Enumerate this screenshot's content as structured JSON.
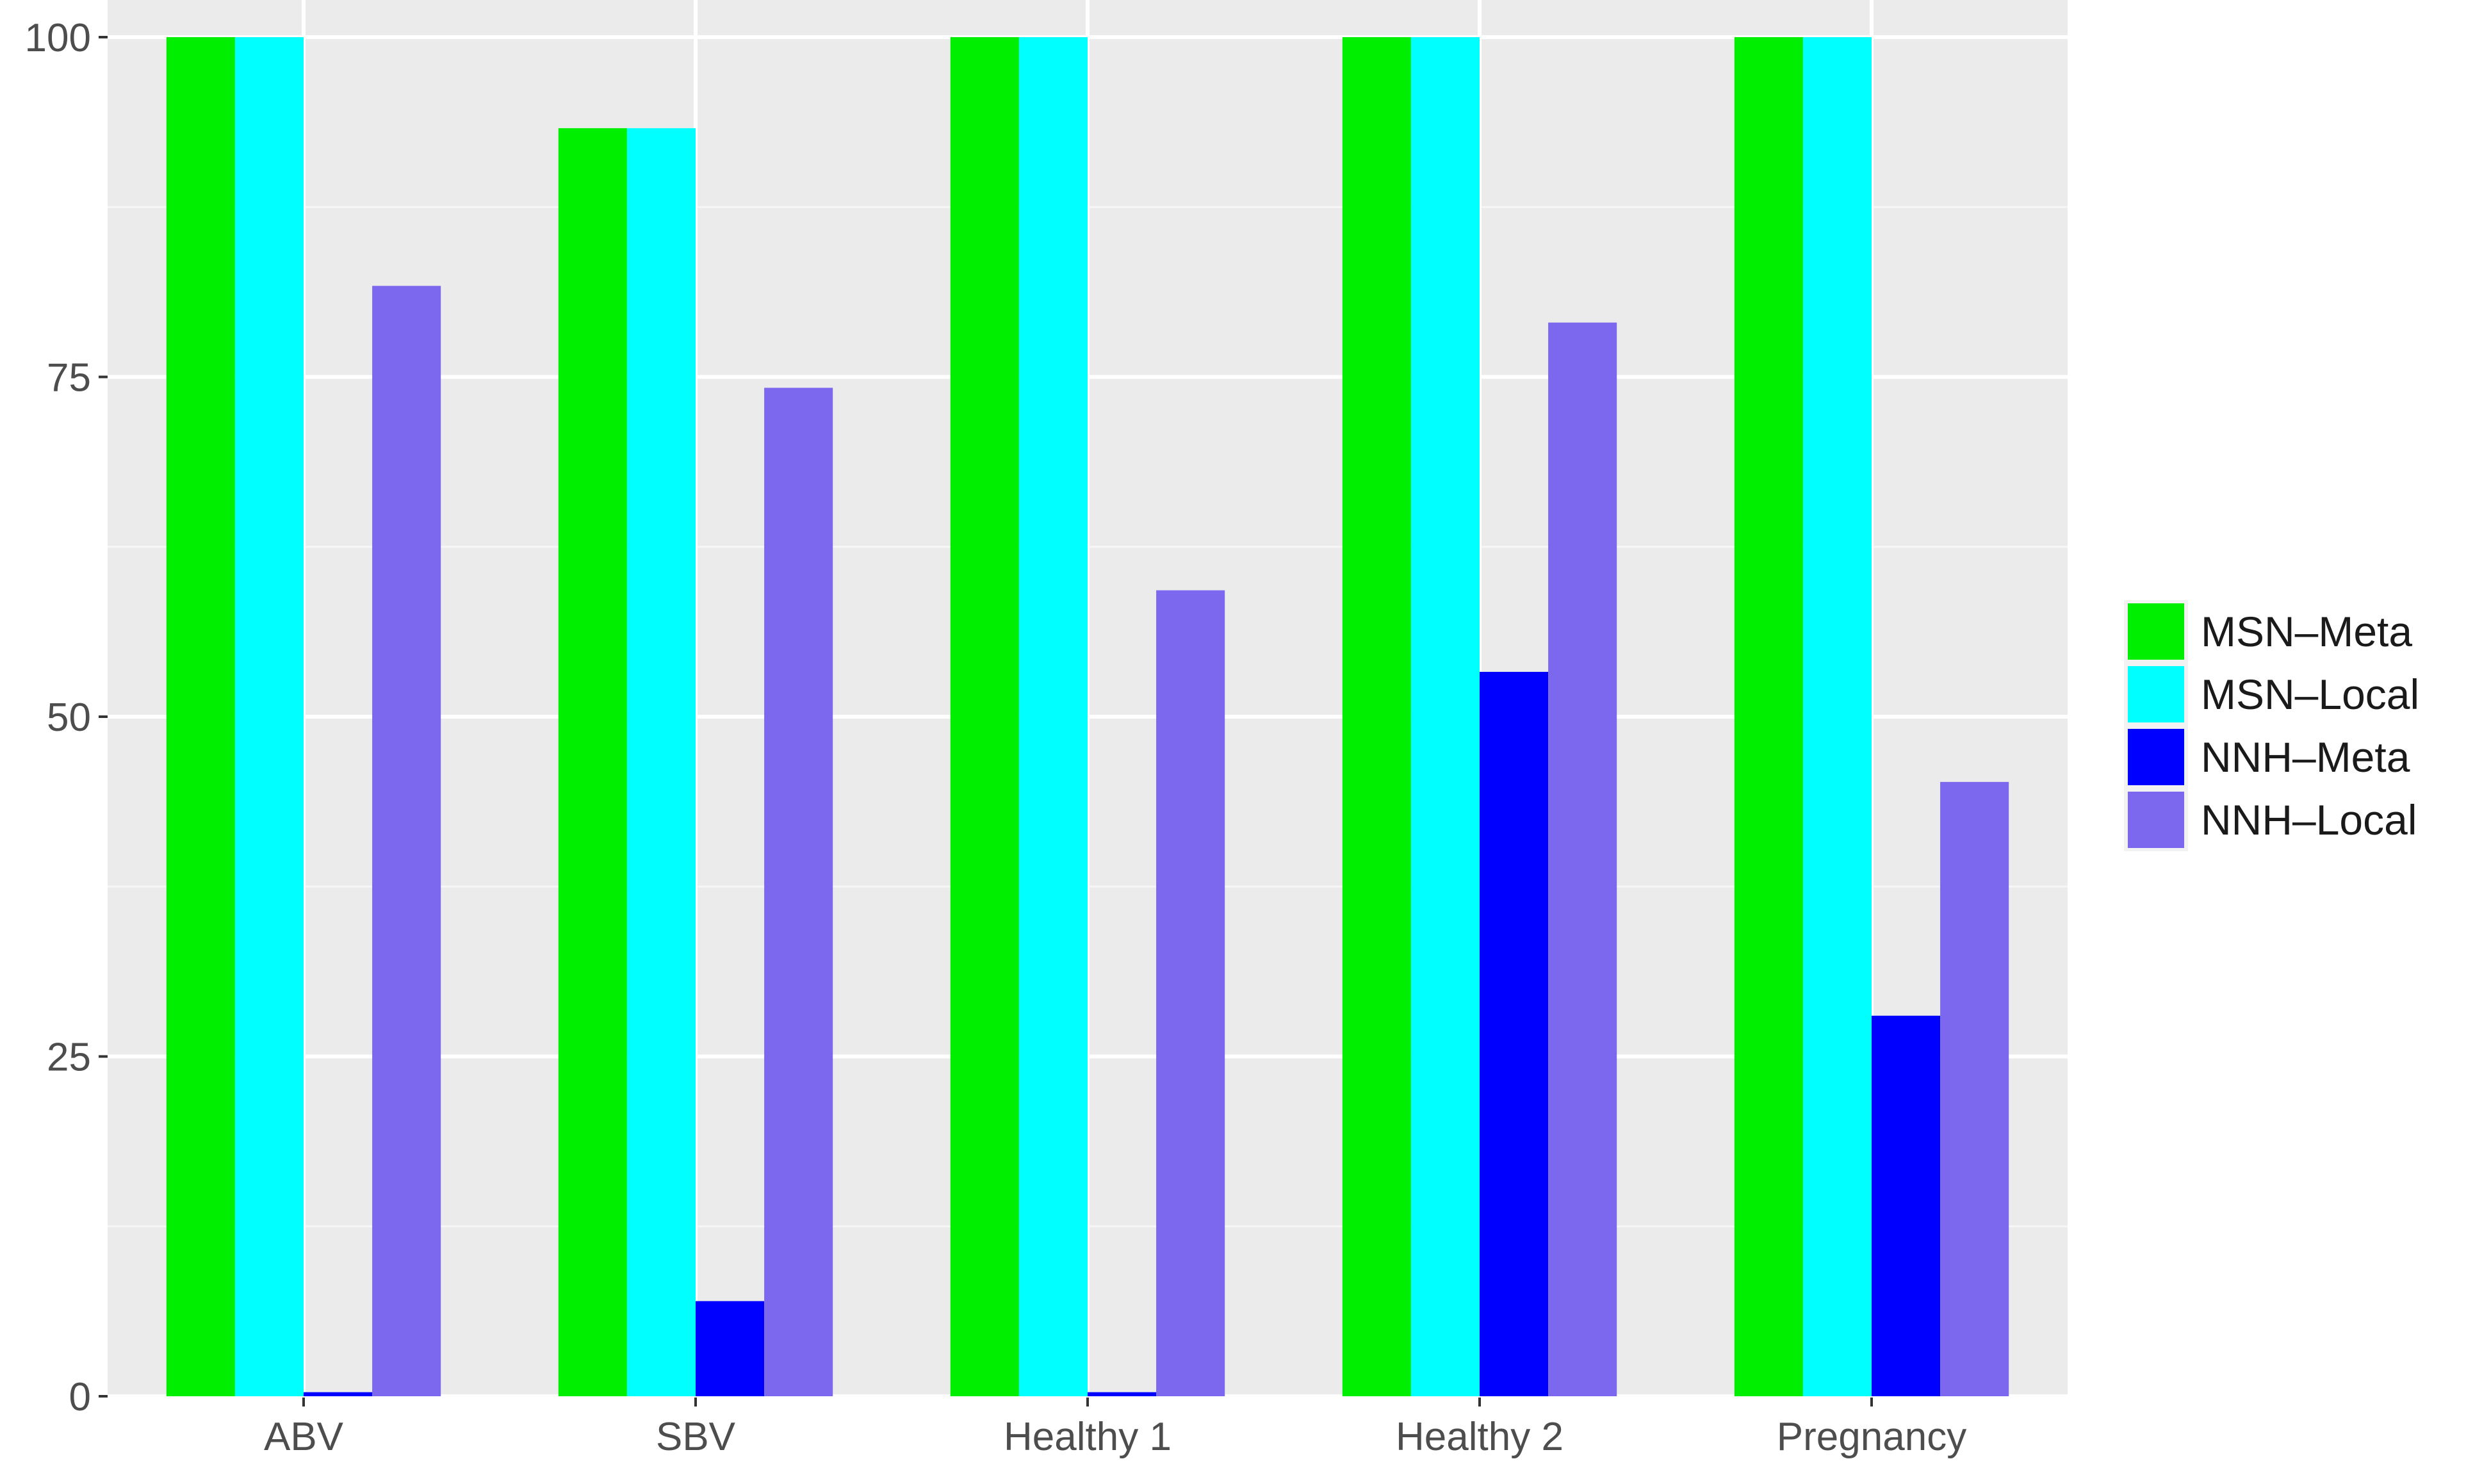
{
  "chart_data": {
    "type": "bar",
    "title": "",
    "xlabel": "",
    "ylabel": "",
    "categories": [
      "ABV",
      "SBV",
      "Healthy 1",
      "Healthy 2",
      "Pregnancy"
    ],
    "ylim": [
      0,
      100
    ],
    "yticks": [
      0,
      25,
      50,
      75,
      100
    ],
    "grid": true,
    "legend_position": "right",
    "series": [
      {
        "name": "MSN–Meta",
        "color": "#00ee00",
        "values": [
          100,
          93.3,
          100,
          100,
          100
        ]
      },
      {
        "name": "MSN–Local",
        "color": "#00ffff",
        "values": [
          100,
          93.3,
          100,
          100,
          100
        ]
      },
      {
        "name": "NNH–Meta",
        "color": "#0000ff",
        "values": [
          0.3,
          7,
          0.3,
          53.3,
          28
        ]
      },
      {
        "name": "NNH–Local",
        "color": "#7b68ee",
        "values": [
          81.7,
          74.2,
          59.3,
          79,
          45.2
        ]
      }
    ]
  }
}
